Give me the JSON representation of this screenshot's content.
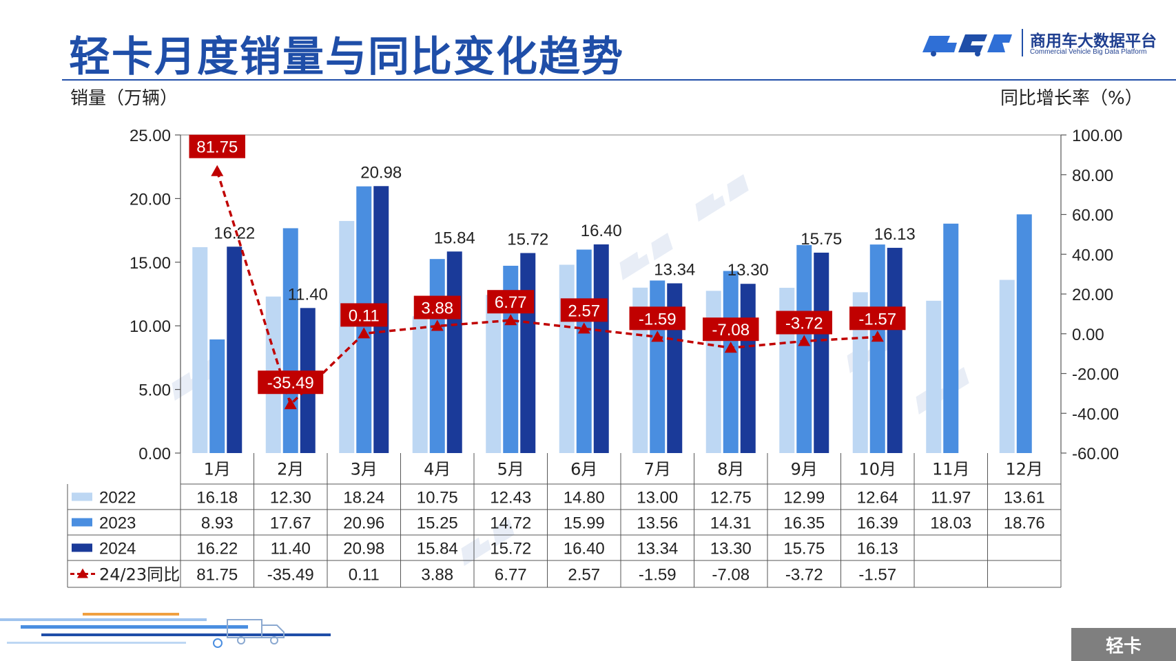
{
  "page": {
    "title": "轻卡月度销量与同比变化趋势",
    "left_axis_title": "销量（万辆）",
    "right_axis_title": "同比增长率（%）",
    "category_tag": "轻卡",
    "logo": {
      "name": "商用车大数据平台",
      "subtitle": "Commercial Vehicle Big Data Platform",
      "icon": "cvbd-truck-logo-icon"
    },
    "watermark_icon": "cvbd-watermark-icon"
  },
  "colors": {
    "brand_blue": "#1f4ea8",
    "s2022": "#bdd7f3",
    "s2023": "#4a8ee0",
    "s2024": "#1a3a99",
    "yoy": "#c00000"
  },
  "chart_data": {
    "type": "bar",
    "categories": [
      "1月",
      "2月",
      "3月",
      "4月",
      "5月",
      "6月",
      "7月",
      "8月",
      "9月",
      "10月",
      "11月",
      "12月"
    ],
    "series": [
      {
        "name": "2022",
        "values": [
          16.18,
          12.3,
          18.24,
          10.75,
          12.43,
          14.8,
          13.0,
          12.75,
          12.99,
          12.64,
          11.97,
          13.61
        ]
      },
      {
        "name": "2023",
        "values": [
          8.93,
          17.67,
          20.96,
          15.25,
          14.72,
          15.99,
          13.56,
          14.31,
          16.35,
          16.39,
          18.03,
          18.76
        ]
      },
      {
        "name": "2024",
        "values": [
          16.22,
          11.4,
          20.98,
          15.84,
          15.72,
          16.4,
          13.34,
          13.3,
          15.75,
          16.13,
          null,
          null
        ]
      }
    ],
    "line_series": {
      "name": "24/23同比",
      "type": "line",
      "axis": "right",
      "values": [
        81.75,
        -35.49,
        0.11,
        3.88,
        6.77,
        2.57,
        -1.59,
        -7.08,
        -3.72,
        -1.57,
        null,
        null
      ]
    },
    "y_left": {
      "min": 0,
      "max": 25,
      "ticks": [
        "0.00",
        "5.00",
        "10.00",
        "15.00",
        "20.00",
        "25.00"
      ]
    },
    "y_right": {
      "min": -60,
      "max": 100,
      "ticks": [
        "-60.00",
        "-40.00",
        "-20.00",
        "0.00",
        "20.00",
        "40.00",
        "60.00",
        "80.00",
        "100.00"
      ]
    },
    "table": {
      "rows": [
        {
          "label": "2022",
          "cells": [
            "16.18",
            "12.30",
            "18.24",
            "10.75",
            "12.43",
            "14.80",
            "13.00",
            "12.75",
            "12.99",
            "12.64",
            "11.97",
            "13.61"
          ]
        },
        {
          "label": "2023",
          "cells": [
            "8.93",
            "17.67",
            "20.96",
            "15.25",
            "14.72",
            "15.99",
            "13.56",
            "14.31",
            "16.35",
            "16.39",
            "18.03",
            "18.76"
          ]
        },
        {
          "label": "2024",
          "cells": [
            "16.22",
            "11.40",
            "20.98",
            "15.84",
            "15.72",
            "16.40",
            "13.34",
            "13.30",
            "15.75",
            "16.13",
            "",
            ""
          ]
        },
        {
          "label": "24/23同比",
          "cells": [
            "81.75",
            "-35.49",
            "0.11",
            "3.88",
            "6.77",
            "2.57",
            "-1.59",
            "-7.08",
            "-3.72",
            "-1.57",
            "",
            ""
          ]
        }
      ]
    },
    "bar_labels_2024": [
      "16.22",
      "11.40",
      "20.98",
      "15.84",
      "15.72",
      "16.40",
      "13.34",
      "13.30",
      "15.75",
      "16.13",
      "",
      ""
    ],
    "yoy_labels": [
      "81.75",
      "-35.49",
      "0.11",
      "3.88",
      "6.77",
      "2.57",
      "-1.59",
      "-7.08",
      "-3.72",
      "-1.57",
      "",
      ""
    ],
    "grid": false,
    "legend": "data-table"
  }
}
